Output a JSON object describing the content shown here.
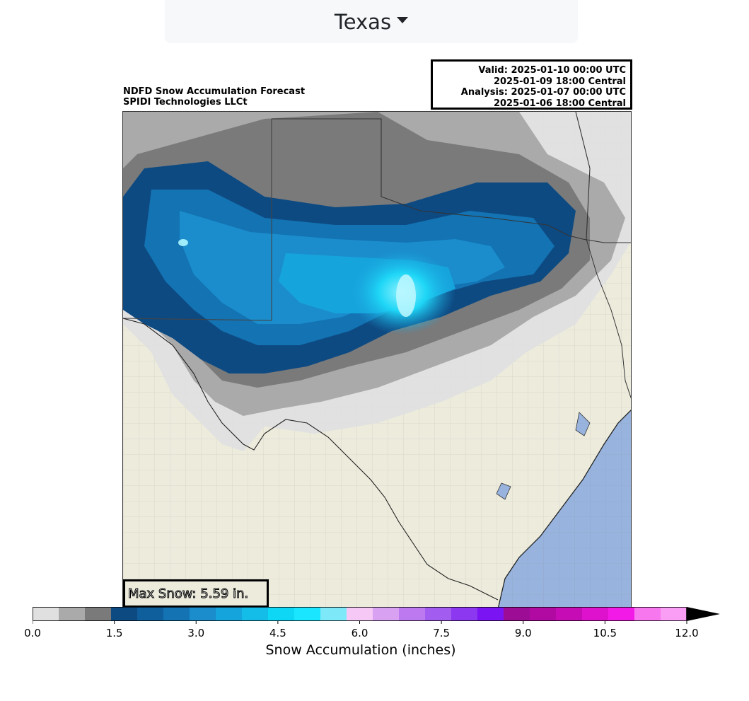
{
  "region_select": {
    "label": "Texas",
    "icon": "caret-down-icon"
  },
  "map": {
    "title_line1": "NDFD Snow Accumulation Forecast",
    "title_line2": "SPIDI Technologies LLCt",
    "valid": {
      "line1": "Valid: 2025-01-10 00:00 UTC",
      "line2": "2025-01-09 18:00 Central",
      "line3": "Analysis: 2025-01-07 00:00 UTC",
      "line4": "2025-01-06 18:00 Central"
    },
    "max_snow_label": "Max Snow: 5.59 in.",
    "colors": {
      "land": "#ecebdc",
      "water": "#97b3de",
      "borders": "#9a9a9a"
    }
  },
  "colorbar": {
    "label": "Snow Accumulation (inches)",
    "ticks": [
      "0.0",
      "1.5",
      "3.0",
      "4.5",
      "6.0",
      "7.5",
      "9.0",
      "10.5",
      "12.0"
    ],
    "levels": [
      0,
      0.5,
      1,
      1.5,
      2,
      2.5,
      3,
      3.5,
      4,
      4.5,
      5,
      5.5,
      6,
      6.5,
      7,
      7.5,
      8,
      8.5,
      9,
      9.5,
      10,
      10.5,
      11,
      11.5,
      12
    ],
    "colors": [
      "#e0e0e0",
      "#aaaaaa",
      "#7a7a7a",
      "#0e4a82",
      "#0f5f9c",
      "#1373b3",
      "#1b8dcc",
      "#16a4dc",
      "#14bce8",
      "#0ed7f5",
      "#1ae6ff",
      "#7de8f7",
      "#f5c8f5",
      "#d8a1f2",
      "#bd7af0",
      "#a25cf0",
      "#8c37f0",
      "#7a14f2",
      "#9d0c95",
      "#b00aa3",
      "#c60cb5",
      "#de11cd",
      "#f21ae6",
      "#f777ef",
      "#fa9df5"
    ],
    "extend_color": "#000000"
  }
}
